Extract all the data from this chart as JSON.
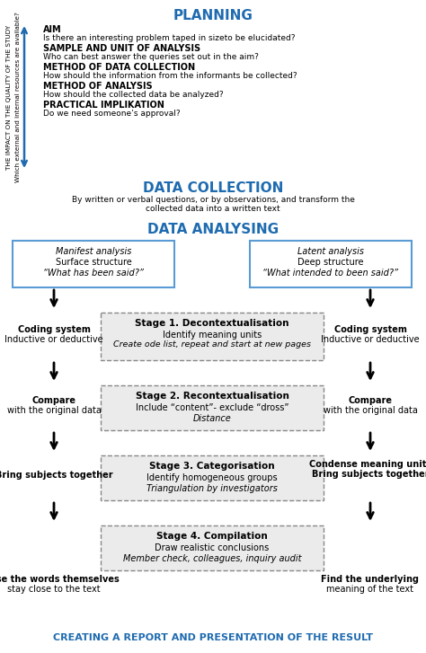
{
  "title_planning": "PLANNING",
  "title_data_collection": "DATA COLLECTION",
  "title_data_analysing": "DATA ANALYSING",
  "title_result": "CREATING A REPORT AND PRESENTATION OF THE RESULT",
  "blue_color": "#1F6BB0",
  "black": "#000000",
  "side_arrow_text1": "THE IMPACT ON THE QUALITY OF THE STUDY",
  "side_arrow_text2": "Which external and internal resources are available?",
  "aim_text": "AIM",
  "aim_desc": "Is there an interesting problem taped in sizeto be elucidated?",
  "sample_text": "SAMPLE AND UNIT OF ANALYSIS",
  "sample_desc": "Who can best answer the queries set out in the aim?",
  "method_dc_text": "METHOD OF DATA COLLECTION",
  "method_dc_desc": "How should the information from the informants be collected?",
  "method_a_text": "METHOD OF ANALYSIS",
  "method_a_desc": "How should the collected data be analyzed?",
  "practical_text": "PRACTICAL IMPLIKATION",
  "practical_desc": "Do we need someone’s approval?",
  "dc_desc1": "By written or verbal questions, or by observations, and transform the",
  "dc_desc2": "collected data into a written text",
  "manifest_line1": "Manifest analysis",
  "manifest_line2": "Surface structure",
  "manifest_line3": "“What has been said?”",
  "latent_line1": "Latent analysis",
  "latent_line2": "Deep structure",
  "latent_line3": "“What intended to been said?”",
  "stage1_title": "Stage 1. Decontextualisation",
  "stage1_line2": "Identify meaning units",
  "stage1_line3": "Create ode list, repeat and start at new pages",
  "coding_left1": "Coding system",
  "coding_left2": "Inductive or deductive",
  "coding_right1": "Coding system",
  "coding_right2": "Inductive or deductive",
  "stage2_title": "Stage 2. Recontextualisation",
  "stage2_line2": "Include “content”- exclude “dross”",
  "stage2_line3": "Distance",
  "compare_left1": "Compare",
  "compare_left2": "with the original data",
  "compare_right1": "Compare",
  "compare_right2": "with the original data",
  "stage3_title": "Stage 3. Categorisation",
  "stage3_line2": "Identify homogeneous groups",
  "stage3_line3": "Triangulation by investigators",
  "condense_right1": "Condense meaning units",
  "condense_right2": "Bring subjects together",
  "bring_left": "Bring subjects together",
  "stage4_title": "Stage 4. Compilation",
  "stage4_line2": "Draw realistic conclusions",
  "stage4_line3": "Member check, colleagues, inquiry audit",
  "use_words_left1": "Use the words themselves",
  "use_words_left2": "stay close to the text",
  "find_underlying_right1": "Find the underlying",
  "find_underlying_right2": "meaning of the text",
  "fig_width": 4.74,
  "fig_height": 7.27,
  "dpi": 100
}
